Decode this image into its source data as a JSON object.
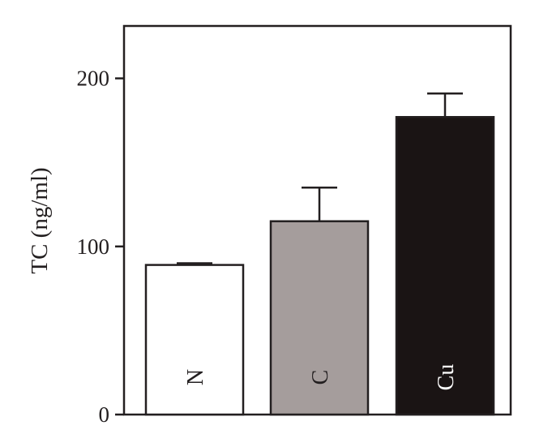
{
  "chart_data": {
    "type": "bar",
    "title": "",
    "xlabel": "",
    "ylabel": "TC (ng/ml)",
    "ylim": [
      0,
      230
    ],
    "yticks": [
      0,
      100,
      200
    ],
    "y_tick_labels": [
      "0",
      "100",
      "200"
    ],
    "categories": [
      "N",
      "C",
      "Cu"
    ],
    "values": [
      89,
      115,
      177
    ],
    "errors": [
      1,
      20,
      14
    ],
    "bar_colors": [
      "#ffffff",
      "#a59d9c",
      "#1a1414"
    ],
    "label_colors": [
      "#231f20",
      "#231f20",
      "#ffffff"
    ],
    "error_bars": "upper",
    "grid": false,
    "legend": "none"
  }
}
